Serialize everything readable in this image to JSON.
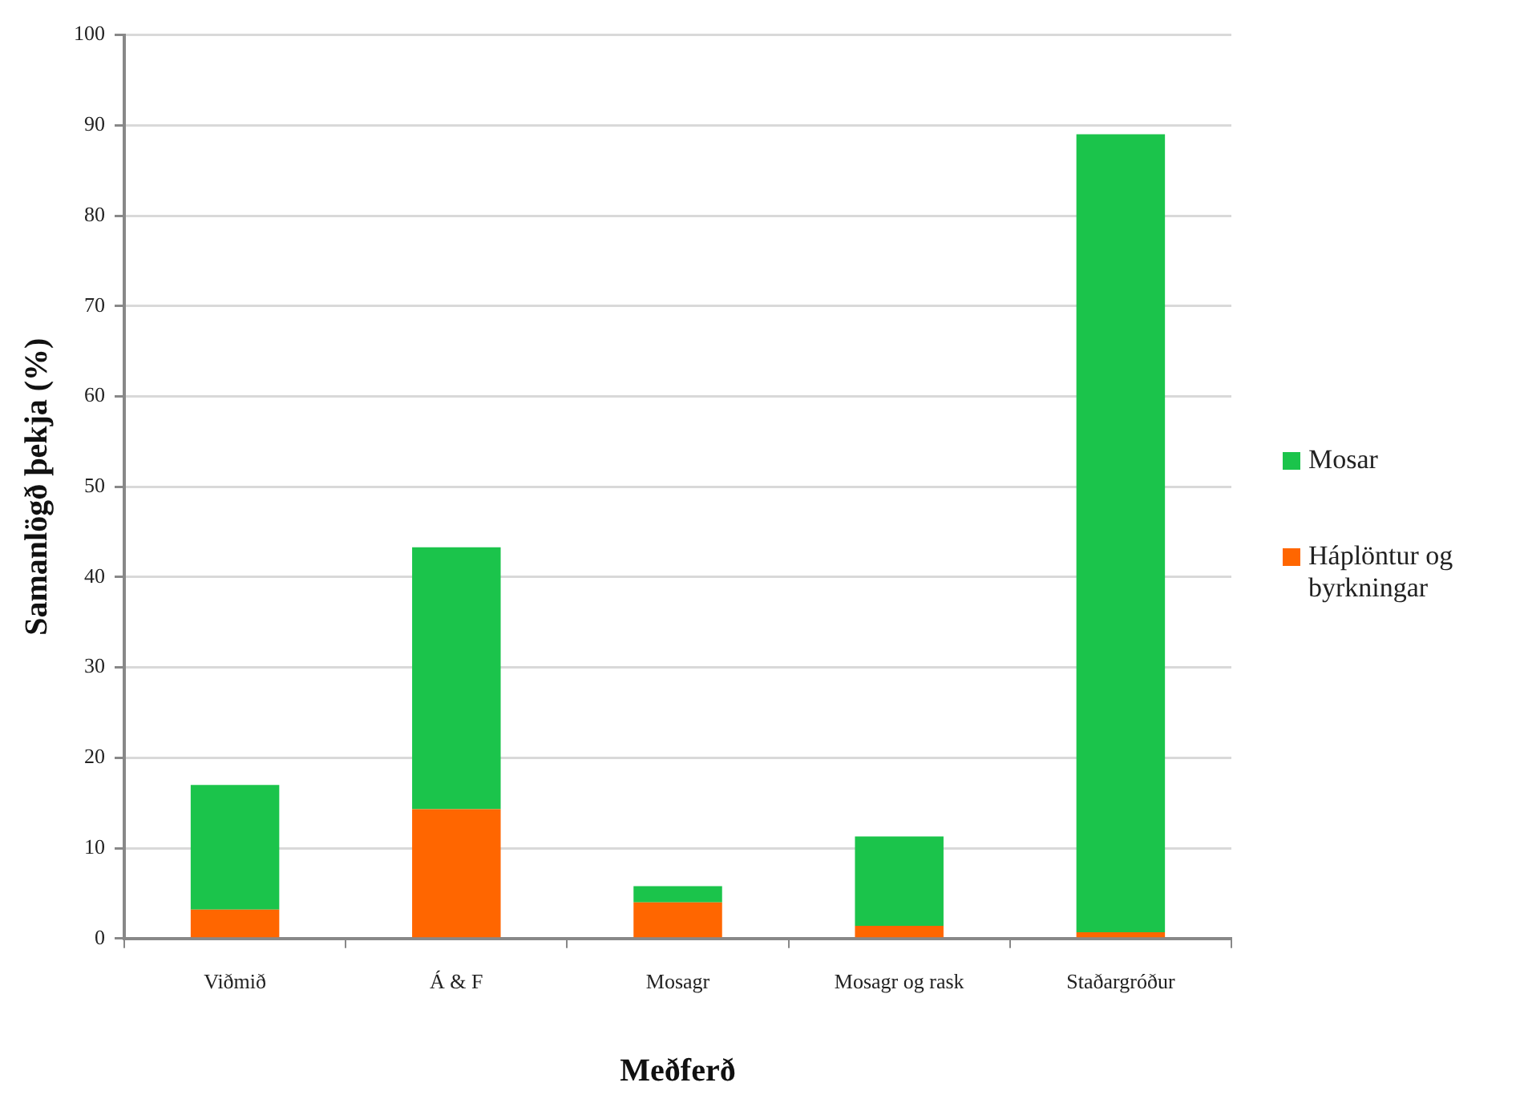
{
  "chart_data": {
    "type": "bar",
    "xlabel": "Meðferð",
    "ylabel": "Samanlögð þekja (%)",
    "categories": [
      "Viðmið",
      "Á & F",
      "Mosagr",
      "Mosagr og rask",
      "Staðargróður"
    ],
    "series": [
      {
        "name": "Háplöntur og byrkningar",
        "color": "#ff6600",
        "values": [
          3.2,
          14.3,
          4.0,
          1.4,
          0.7
        ]
      },
      {
        "name": "Mosar",
        "color": "#1bc44b",
        "values": [
          13.8,
          29.0,
          1.8,
          9.9,
          88.3
        ]
      }
    ],
    "stacked": true,
    "ylim": [
      0,
      100
    ],
    "yticks": [
      0,
      10,
      20,
      30,
      40,
      50,
      60,
      70,
      80,
      90,
      100
    ],
    "grid": "y",
    "legend": "right"
  }
}
